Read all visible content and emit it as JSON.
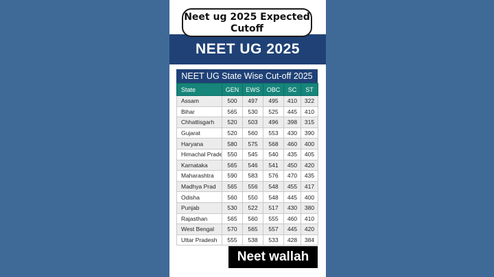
{
  "header": {
    "pill_title": "Neet ug 2025 Expected Cutoff",
    "banner_title": "NEET UG 2025"
  },
  "table": {
    "title": "NEET UG State Wise Cut-off 2025",
    "columns": [
      "State",
      "GEN",
      "EWS",
      "OBC",
      "SC",
      "ST"
    ],
    "rows": [
      [
        "Assam",
        "500",
        "497",
        "495",
        "410",
        "322"
      ],
      [
        "Bihar",
        "565",
        "530",
        "525",
        "445",
        "410"
      ],
      [
        "Chhattisgarh",
        "520",
        "503",
        "496",
        "398",
        "315"
      ],
      [
        "Gujarat",
        "520",
        "560",
        "553",
        "430",
        "390"
      ],
      [
        "Haryana",
        "580",
        "575",
        "568",
        "460",
        "400"
      ],
      [
        "Himachal Prade",
        "550",
        "545",
        "540",
        "435",
        "405"
      ],
      [
        "Karnataka",
        "565",
        "546",
        "541",
        "450",
        "420"
      ],
      [
        "Maharashtra",
        "590",
        "583",
        "576",
        "470",
        "435"
      ],
      [
        "Madhya Prad",
        "565",
        "556",
        "548",
        "455",
        "417"
      ],
      [
        "Odisha",
        "560",
        "550",
        "548",
        "445",
        "400"
      ],
      [
        "Punjab",
        "530",
        "522",
        "517",
        "430",
        "380"
      ],
      [
        "Rajasthan",
        "565",
        "560",
        "555",
        "460",
        "410"
      ],
      [
        "West Bengal",
        "570",
        "565",
        "557",
        "445",
        "420"
      ],
      [
        "Uttar Pradesh",
        "555",
        "538",
        "533",
        "428",
        "384"
      ]
    ]
  },
  "watermark": "Neet wallah",
  "colors": {
    "background": "#3f6a98",
    "banner": "#1f4176",
    "header_row": "#16857a",
    "row_alt": "#ececec"
  }
}
